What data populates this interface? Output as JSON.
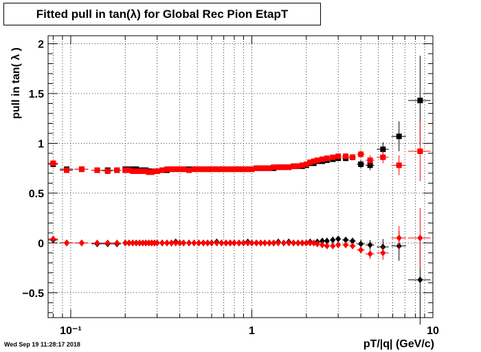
{
  "chart_data": {
    "type": "scatter",
    "title": "Fitted pull in tan(λ) for Global Rec Pion EtapT",
    "xlabel": "pT/|q| (GeV/c)",
    "ylabel": "pull in tan( λ )",
    "x_scale": "log",
    "xlim": [
      0.075,
      10
    ],
    "ylim": [
      -0.75,
      2.08
    ],
    "x_ticks": [
      {
        "value": 0.1,
        "label": "10⁻¹"
      },
      {
        "value": 1,
        "label": "1"
      },
      {
        "value": 10,
        "label": "10"
      }
    ],
    "y_ticks": [
      {
        "value": -0.5,
        "label": "−0.5"
      },
      {
        "value": 0,
        "label": "0"
      },
      {
        "value": 0.5,
        "label": "0.5"
      },
      {
        "value": 1,
        "label": "1"
      },
      {
        "value": 1.5,
        "label": "1.5"
      },
      {
        "value": 2,
        "label": "2"
      }
    ],
    "grid": true,
    "series": [
      {
        "marker": "square",
        "color": "#000000",
        "x": [
          0.08,
          0.095,
          0.115,
          0.14,
          0.16,
          0.18,
          0.2,
          0.21,
          0.22,
          0.23,
          0.24,
          0.25,
          0.26,
          0.27,
          0.28,
          0.29,
          0.3,
          0.32,
          0.34,
          0.36,
          0.38,
          0.4,
          0.42,
          0.45,
          0.48,
          0.51,
          0.54,
          0.57,
          0.6,
          0.64,
          0.68,
          0.72,
          0.76,
          0.8,
          0.85,
          0.9,
          0.95,
          1.0,
          1.06,
          1.12,
          1.18,
          1.25,
          1.32,
          1.4,
          1.5,
          1.6,
          1.7,
          1.8,
          1.9,
          2.0,
          2.1,
          2.2,
          2.3,
          2.45,
          2.6,
          2.8,
          3.0,
          3.3,
          3.6,
          4.0,
          4.5,
          5.3,
          6.5,
          8.5
        ],
        "y": [
          0.79,
          0.74,
          0.74,
          0.73,
          0.73,
          0.73,
          0.74,
          0.74,
          0.74,
          0.74,
          0.73,
          0.73,
          0.73,
          0.72,
          0.72,
          0.72,
          0.72,
          0.73,
          0.73,
          0.74,
          0.74,
          0.74,
          0.74,
          0.74,
          0.74,
          0.74,
          0.74,
          0.74,
          0.74,
          0.74,
          0.74,
          0.74,
          0.74,
          0.74,
          0.74,
          0.74,
          0.74,
          0.74,
          0.75,
          0.75,
          0.75,
          0.75,
          0.75,
          0.76,
          0.76,
          0.76,
          0.77,
          0.77,
          0.77,
          0.78,
          0.8,
          0.8,
          0.82,
          0.82,
          0.83,
          0.84,
          0.85,
          0.85,
          0.86,
          0.79,
          0.78,
          0.94,
          1.07,
          1.43
        ],
        "xerr": [
          0.005,
          0.008,
          0.01,
          0.01,
          0.01,
          0.01,
          0.005,
          0.005,
          0.005,
          0.005,
          0.005,
          0.005,
          0.005,
          0.005,
          0.005,
          0.005,
          0.01,
          0.01,
          0.01,
          0.01,
          0.01,
          0.01,
          0.01,
          0.015,
          0.015,
          0.015,
          0.015,
          0.015,
          0.015,
          0.02,
          0.02,
          0.02,
          0.02,
          0.02,
          0.025,
          0.025,
          0.025,
          0.03,
          0.03,
          0.03,
          0.03,
          0.035,
          0.035,
          0.04,
          0.05,
          0.05,
          0.05,
          0.05,
          0.05,
          0.05,
          0.05,
          0.05,
          0.05,
          0.075,
          0.075,
          0.1,
          0.1,
          0.15,
          0.15,
          0.2,
          0.25,
          0.4,
          0.6,
          1.2
        ],
        "yerr": [
          0.02,
          0.01,
          0.01,
          0.01,
          0.01,
          0.01,
          0.01,
          0.01,
          0.01,
          0.01,
          0.01,
          0.01,
          0.01,
          0.01,
          0.01,
          0.01,
          0.01,
          0.01,
          0.01,
          0.01,
          0.01,
          0.01,
          0.01,
          0.01,
          0.01,
          0.01,
          0.01,
          0.01,
          0.01,
          0.01,
          0.01,
          0.01,
          0.01,
          0.01,
          0.01,
          0.01,
          0.01,
          0.01,
          0.01,
          0.01,
          0.01,
          0.01,
          0.01,
          0.01,
          0.01,
          0.01,
          0.01,
          0.01,
          0.01,
          0.01,
          0.02,
          0.02,
          0.02,
          0.02,
          0.02,
          0.02,
          0.03,
          0.03,
          0.03,
          0.04,
          0.05,
          0.07,
          0.15,
          0.45
        ]
      },
      {
        "marker": "square",
        "color": "#ff0000",
        "x": [
          0.08,
          0.095,
          0.115,
          0.14,
          0.16,
          0.18,
          0.2,
          0.21,
          0.22,
          0.23,
          0.24,
          0.25,
          0.26,
          0.27,
          0.28,
          0.29,
          0.3,
          0.32,
          0.34,
          0.36,
          0.38,
          0.4,
          0.42,
          0.45,
          0.48,
          0.51,
          0.54,
          0.57,
          0.6,
          0.64,
          0.68,
          0.72,
          0.76,
          0.8,
          0.85,
          0.9,
          0.95,
          1.0,
          1.06,
          1.12,
          1.18,
          1.25,
          1.32,
          1.4,
          1.5,
          1.6,
          1.7,
          1.8,
          1.9,
          2.0,
          2.1,
          2.2,
          2.3,
          2.45,
          2.6,
          2.8,
          3.0,
          3.3,
          3.6,
          4.0,
          4.5,
          5.3,
          6.5,
          8.5
        ],
        "y": [
          0.8,
          0.73,
          0.74,
          0.73,
          0.72,
          0.73,
          0.73,
          0.73,
          0.72,
          0.72,
          0.72,
          0.72,
          0.72,
          0.71,
          0.71,
          0.72,
          0.72,
          0.73,
          0.74,
          0.74,
          0.74,
          0.74,
          0.74,
          0.73,
          0.74,
          0.74,
          0.74,
          0.74,
          0.74,
          0.74,
          0.74,
          0.74,
          0.74,
          0.74,
          0.74,
          0.74,
          0.74,
          0.74,
          0.75,
          0.75,
          0.75,
          0.75,
          0.76,
          0.76,
          0.76,
          0.76,
          0.77,
          0.77,
          0.78,
          0.79,
          0.81,
          0.82,
          0.83,
          0.84,
          0.85,
          0.86,
          0.87,
          0.87,
          0.86,
          0.89,
          0.83,
          0.86,
          0.78,
          0.92
        ],
        "xerr": [
          0.005,
          0.008,
          0.01,
          0.01,
          0.01,
          0.01,
          0.005,
          0.005,
          0.005,
          0.005,
          0.005,
          0.005,
          0.005,
          0.005,
          0.005,
          0.005,
          0.01,
          0.01,
          0.01,
          0.01,
          0.01,
          0.01,
          0.01,
          0.015,
          0.015,
          0.015,
          0.015,
          0.015,
          0.015,
          0.02,
          0.02,
          0.02,
          0.02,
          0.02,
          0.025,
          0.025,
          0.025,
          0.03,
          0.03,
          0.03,
          0.03,
          0.035,
          0.035,
          0.04,
          0.05,
          0.05,
          0.05,
          0.05,
          0.05,
          0.05,
          0.05,
          0.05,
          0.05,
          0.075,
          0.075,
          0.1,
          0.1,
          0.15,
          0.15,
          0.2,
          0.25,
          0.4,
          0.6,
          1.2
        ],
        "yerr": [
          0.02,
          0.01,
          0.01,
          0.01,
          0.01,
          0.01,
          0.01,
          0.01,
          0.01,
          0.01,
          0.01,
          0.01,
          0.01,
          0.01,
          0.01,
          0.01,
          0.01,
          0.01,
          0.01,
          0.01,
          0.01,
          0.01,
          0.01,
          0.01,
          0.01,
          0.01,
          0.01,
          0.01,
          0.01,
          0.01,
          0.01,
          0.01,
          0.01,
          0.01,
          0.01,
          0.01,
          0.01,
          0.01,
          0.01,
          0.01,
          0.01,
          0.01,
          0.01,
          0.01,
          0.01,
          0.01,
          0.01,
          0.01,
          0.01,
          0.01,
          0.02,
          0.02,
          0.02,
          0.02,
          0.02,
          0.02,
          0.03,
          0.03,
          0.03,
          0.04,
          0.05,
          0.06,
          0.1,
          0.3
        ]
      },
      {
        "marker": "diamond",
        "color": "#000000",
        "x": [
          0.08,
          0.095,
          0.115,
          0.14,
          0.16,
          0.18,
          0.2,
          0.21,
          0.22,
          0.23,
          0.24,
          0.25,
          0.26,
          0.27,
          0.28,
          0.29,
          0.3,
          0.32,
          0.34,
          0.36,
          0.38,
          0.4,
          0.42,
          0.45,
          0.48,
          0.51,
          0.54,
          0.57,
          0.6,
          0.64,
          0.68,
          0.72,
          0.76,
          0.8,
          0.85,
          0.9,
          0.95,
          1.0,
          1.06,
          1.12,
          1.18,
          1.25,
          1.32,
          1.4,
          1.5,
          1.6,
          1.7,
          1.8,
          1.9,
          2.0,
          2.1,
          2.2,
          2.3,
          2.45,
          2.6,
          2.8,
          3.0,
          3.3,
          3.6,
          4.0,
          4.5,
          5.3,
          6.5,
          8.5
        ],
        "y": [
          0.03,
          0.0,
          0.0,
          -0.01,
          -0.01,
          -0.01,
          0.0,
          0.0,
          0.0,
          0.0,
          0.0,
          0.0,
          0.0,
          0.0,
          0.0,
          0.0,
          0.0,
          0.0,
          0.0,
          0.0,
          0.01,
          0.0,
          0.0,
          0.0,
          0.0,
          0.0,
          0.0,
          0.0,
          0.0,
          0.01,
          0.0,
          0.0,
          0.0,
          0.0,
          0.0,
          0.0,
          0.01,
          0.0,
          0.0,
          0.0,
          0.0,
          0.0,
          0.0,
          0.01,
          0.0,
          0.01,
          0.0,
          0.0,
          0.0,
          0.0,
          0.01,
          0.0,
          0.01,
          0.02,
          0.02,
          0.03,
          0.04,
          0.03,
          0.02,
          -0.01,
          -0.02,
          -0.04,
          -0.03,
          -0.37
        ],
        "xerr": [
          0.005,
          0.008,
          0.01,
          0.01,
          0.01,
          0.01,
          0.005,
          0.005,
          0.005,
          0.005,
          0.005,
          0.005,
          0.005,
          0.005,
          0.005,
          0.005,
          0.01,
          0.01,
          0.01,
          0.01,
          0.01,
          0.01,
          0.01,
          0.015,
          0.015,
          0.015,
          0.015,
          0.015,
          0.015,
          0.02,
          0.02,
          0.02,
          0.02,
          0.02,
          0.025,
          0.025,
          0.025,
          0.03,
          0.03,
          0.03,
          0.03,
          0.035,
          0.035,
          0.04,
          0.05,
          0.05,
          0.05,
          0.05,
          0.05,
          0.05,
          0.05,
          0.05,
          0.05,
          0.075,
          0.075,
          0.1,
          0.1,
          0.15,
          0.15,
          0.2,
          0.25,
          0.4,
          0.6,
          1.2
        ],
        "yerr": [
          0.02,
          0.01,
          0.01,
          0.01,
          0.01,
          0.01,
          0.01,
          0.01,
          0.01,
          0.01,
          0.01,
          0.01,
          0.01,
          0.01,
          0.01,
          0.01,
          0.01,
          0.01,
          0.01,
          0.01,
          0.01,
          0.01,
          0.01,
          0.01,
          0.01,
          0.01,
          0.01,
          0.01,
          0.01,
          0.01,
          0.01,
          0.01,
          0.01,
          0.01,
          0.01,
          0.01,
          0.01,
          0.01,
          0.01,
          0.01,
          0.01,
          0.01,
          0.01,
          0.01,
          0.01,
          0.01,
          0.01,
          0.01,
          0.01,
          0.01,
          0.02,
          0.02,
          0.02,
          0.02,
          0.02,
          0.02,
          0.03,
          0.03,
          0.03,
          0.04,
          0.05,
          0.08,
          0.15,
          0.45
        ]
      },
      {
        "marker": "diamond",
        "color": "#ff0000",
        "x": [
          0.08,
          0.095,
          0.115,
          0.14,
          0.16,
          0.18,
          0.2,
          0.21,
          0.22,
          0.23,
          0.24,
          0.25,
          0.26,
          0.27,
          0.28,
          0.29,
          0.3,
          0.32,
          0.34,
          0.36,
          0.38,
          0.4,
          0.42,
          0.45,
          0.48,
          0.51,
          0.54,
          0.57,
          0.6,
          0.64,
          0.68,
          0.72,
          0.76,
          0.8,
          0.85,
          0.9,
          0.95,
          1.0,
          1.06,
          1.12,
          1.18,
          1.25,
          1.32,
          1.4,
          1.5,
          1.6,
          1.7,
          1.8,
          1.9,
          2.0,
          2.1,
          2.2,
          2.3,
          2.45,
          2.6,
          2.8,
          3.0,
          3.3,
          3.6,
          4.0,
          4.5,
          5.3,
          6.5,
          8.5
        ],
        "y": [
          0.04,
          0.0,
          0.0,
          0.0,
          0.0,
          0.0,
          0.0,
          0.0,
          0.0,
          0.0,
          0.0,
          0.0,
          0.0,
          0.0,
          0.0,
          0.0,
          0.0,
          0.0,
          0.0,
          0.0,
          0.0,
          0.0,
          0.0,
          0.0,
          0.0,
          0.0,
          0.0,
          0.0,
          0.0,
          0.0,
          0.0,
          0.0,
          0.0,
          0.0,
          0.0,
          0.0,
          0.0,
          0.0,
          0.0,
          0.0,
          0.0,
          0.0,
          0.0,
          0.0,
          0.0,
          0.0,
          0.0,
          0.0,
          0.0,
          0.0,
          0.0,
          0.0,
          -0.01,
          -0.02,
          -0.03,
          -0.03,
          -0.02,
          -0.02,
          -0.03,
          -0.07,
          -0.11,
          -0.1,
          0.05,
          0.05
        ],
        "xerr": [
          0.005,
          0.008,
          0.01,
          0.01,
          0.01,
          0.01,
          0.005,
          0.005,
          0.005,
          0.005,
          0.005,
          0.005,
          0.005,
          0.005,
          0.005,
          0.005,
          0.01,
          0.01,
          0.01,
          0.01,
          0.01,
          0.01,
          0.01,
          0.015,
          0.015,
          0.015,
          0.015,
          0.015,
          0.015,
          0.02,
          0.02,
          0.02,
          0.02,
          0.02,
          0.025,
          0.025,
          0.025,
          0.03,
          0.03,
          0.03,
          0.03,
          0.035,
          0.035,
          0.04,
          0.05,
          0.05,
          0.05,
          0.05,
          0.05,
          0.05,
          0.05,
          0.05,
          0.05,
          0.075,
          0.075,
          0.1,
          0.1,
          0.15,
          0.15,
          0.2,
          0.25,
          0.4,
          0.6,
          1.2
        ],
        "yerr": [
          0.02,
          0.01,
          0.01,
          0.01,
          0.01,
          0.01,
          0.01,
          0.01,
          0.01,
          0.01,
          0.01,
          0.01,
          0.01,
          0.01,
          0.01,
          0.01,
          0.01,
          0.01,
          0.01,
          0.01,
          0.01,
          0.01,
          0.01,
          0.01,
          0.01,
          0.01,
          0.01,
          0.01,
          0.01,
          0.01,
          0.01,
          0.01,
          0.01,
          0.01,
          0.01,
          0.01,
          0.01,
          0.01,
          0.01,
          0.01,
          0.01,
          0.01,
          0.01,
          0.01,
          0.01,
          0.01,
          0.01,
          0.01,
          0.01,
          0.01,
          0.02,
          0.02,
          0.02,
          0.02,
          0.02,
          0.02,
          0.03,
          0.03,
          0.03,
          0.04,
          0.05,
          0.07,
          0.12,
          0.3
        ]
      }
    ]
  },
  "footer": {
    "timestamp": "Wed Sep 19 11:28:17 2018"
  }
}
